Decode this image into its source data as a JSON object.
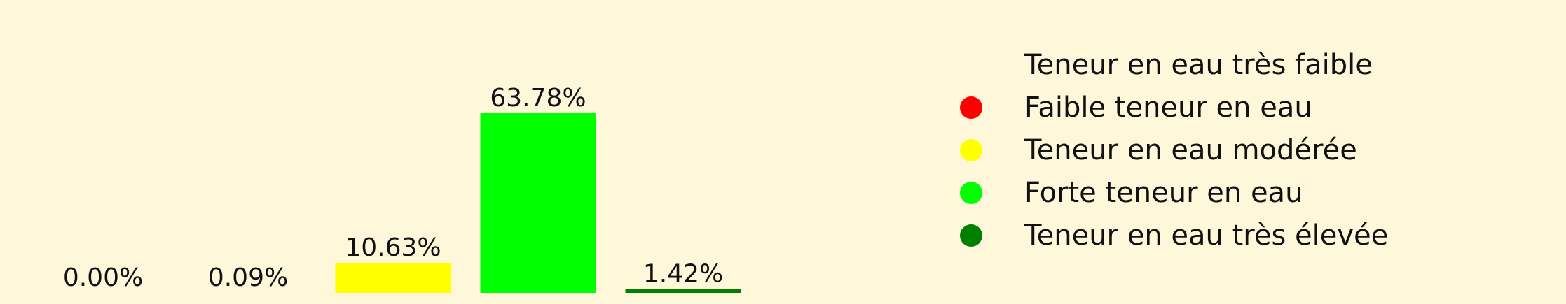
{
  "chart_data": {
    "type": "bar",
    "categories": [
      "Teneur en eau très faible",
      "Faible teneur en eau",
      "Teneur en eau modérée",
      "Forte teneur en eau",
      "Teneur en eau très élevée"
    ],
    "values": [
      0.0,
      0.09,
      10.63,
      63.78,
      1.42
    ],
    "data_labels": [
      "0.00%",
      "0.09%",
      "10.63%",
      "63.78%",
      "1.42%"
    ],
    "colors": [
      "#fef7da",
      "#ff0000",
      "#ffff00",
      "#00ff00",
      "#008000"
    ],
    "ylim": [
      0,
      63.78
    ],
    "grid": false,
    "legend_position": "right",
    "legend": {
      "items": [
        {
          "label": "Teneur en eau très faible",
          "color": "#fef7da"
        },
        {
          "label": "Faible teneur en eau",
          "color": "#ff0000"
        },
        {
          "label": "Teneur en eau modérée",
          "color": "#ffff00"
        },
        {
          "label": "Forte teneur en eau",
          "color": "#00ff00"
        },
        {
          "label": "Teneur en eau très élevée",
          "color": "#008000"
        }
      ]
    }
  }
}
